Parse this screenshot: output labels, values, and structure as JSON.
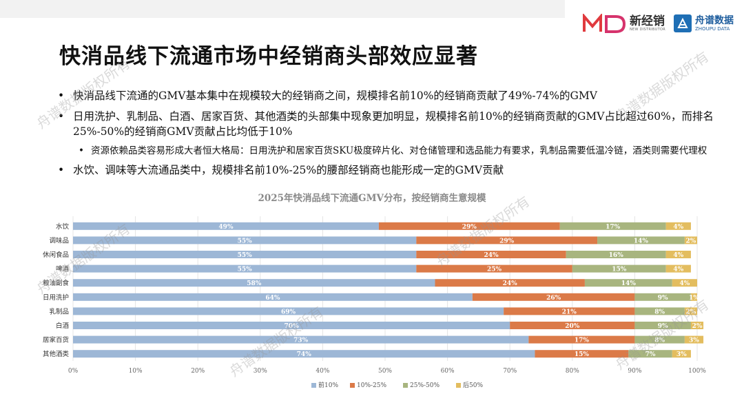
{
  "header": {
    "brand1_name": "新经销",
    "brand1_sub": "NEW DISTRIBUTOR",
    "brand2_name": "舟谱数据",
    "brand2_sub": "ZHOUPU DATA"
  },
  "title": "快消品线下流通市场中经销商头部效应显著",
  "bullets": [
    "快消品线下流通的GMV基本集中在规模较大的经销商之间，规模排名前10%的经销商贡献了49%-74%的GMV",
    "日用洗护、乳制品、白酒、居家百货、其他酒类的头部集中现象更加明显，规模排名前10%的经销商贡献的GMV占比超过60%，而排名25%-50%的经销商GMV贡献占比均低于10%",
    "资源依赖品类容易形成大者恒大格局：日用洗护和居家百货SKU极度碎片化、对仓储管理和选品能力有要求，乳制品需要低温冷链，酒类则需要代理权",
    "水饮、调味等大流通品类中，规模排名前10%-25%的腰部经销商也能形成一定的GMV贡献"
  ],
  "watermark": "舟谱数据版权所有",
  "colors": {
    "top10": "#9db7d6",
    "p10_25": "#db7a48",
    "p25_50": "#a8b57f",
    "bottom50": "#e3bd5f"
  },
  "chart_data": {
    "type": "bar",
    "orientation": "horizontal",
    "stacked": true,
    "title": "2025年快消品线下流通GMV分布，按经销商生意规模",
    "categories": [
      "水饮",
      "调味品",
      "休闲食品",
      "啤酒",
      "粮油副食",
      "日用洗护",
      "乳制品",
      "白酒",
      "居家百货",
      "其他酒类"
    ],
    "series": [
      {
        "name": "前10%",
        "values": [
          49,
          55,
          55,
          55,
          58,
          64,
          69,
          70,
          73,
          74
        ]
      },
      {
        "name": "10%-25%",
        "values": [
          29,
          29,
          24,
          25,
          24,
          26,
          21,
          20,
          17,
          15
        ]
      },
      {
        "name": "25%-50%",
        "values": [
          17,
          14,
          16,
          15,
          14,
          9,
          8,
          9,
          8,
          7
        ]
      },
      {
        "name": "后50%",
        "values": [
          4,
          2,
          4,
          4,
          4,
          1,
          2,
          2,
          3,
          3
        ]
      }
    ],
    "xlim": [
      0,
      100
    ],
    "x_ticks": [
      "0%",
      "10%",
      "20%",
      "30%",
      "40%",
      "50%",
      "60%",
      "70%",
      "80%",
      "90%",
      "100%"
    ],
    "grid": true,
    "legend_position": "bottom"
  }
}
